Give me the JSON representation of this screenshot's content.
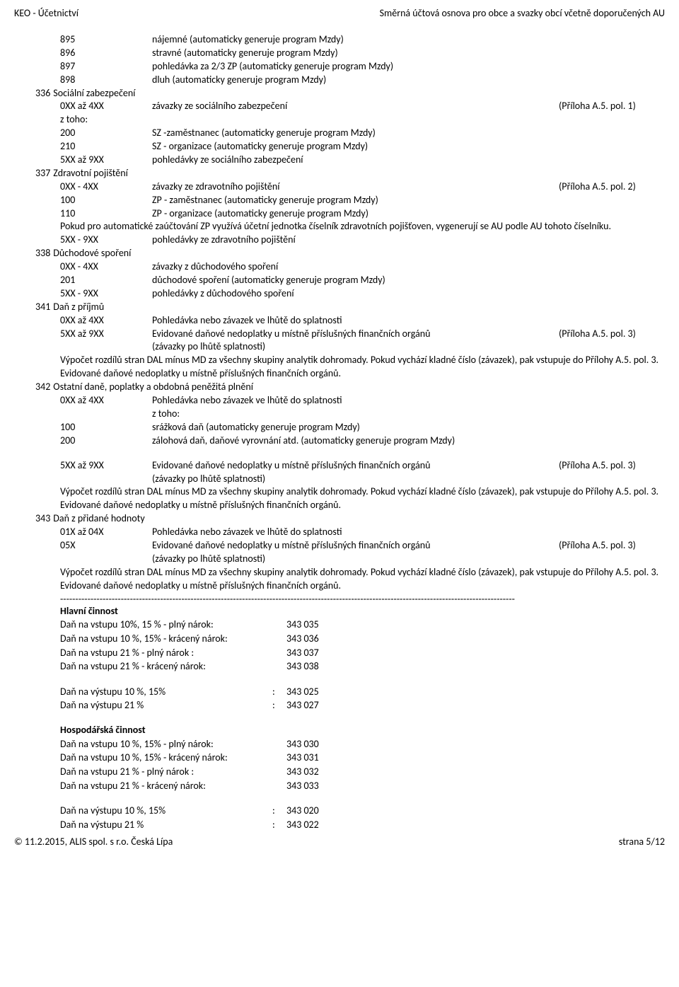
{
  "header": {
    "left": "KEO -  Účetnictví",
    "right": "Směrná účtová osnova pro obce a svazky obcí včetně doporučených AU"
  },
  "lines": [
    {
      "type": "row",
      "indent": 2,
      "code": "895",
      "desc": "nájemné (automaticky generuje program Mzdy)"
    },
    {
      "type": "row",
      "indent": 2,
      "code": "896",
      "desc": "stravné (automaticky generuje program Mzdy)"
    },
    {
      "type": "row",
      "indent": 2,
      "code": "897",
      "desc": "pohledávka za 2/3 ZP (automaticky generuje program Mzdy)"
    },
    {
      "type": "row",
      "indent": 2,
      "code": "898",
      "desc": "dluh (automaticky generuje program Mzdy)"
    },
    {
      "type": "section",
      "code": "336",
      "desc": "Sociální zabezpečení"
    },
    {
      "type": "row",
      "indent": 2,
      "code": "0XX až 4XX",
      "desc": "závazky ze sociálního zabezpečení",
      "ref": "(Příloha A.5. pol. 1)"
    },
    {
      "type": "row",
      "indent": 2,
      "code": "z toho:",
      "desc": ""
    },
    {
      "type": "row",
      "indent": 2,
      "code": "200",
      "desc": "SZ -zaměstnanec  (automaticky generuje program Mzdy)"
    },
    {
      "type": "row",
      "indent": 2,
      "code": "210",
      "desc": "SZ - organizace (automaticky generuje program Mzdy)"
    },
    {
      "type": "row",
      "indent": 2,
      "code": "5XX až 9XX",
      "desc": "pohledávky ze sociálního zabezpečení"
    },
    {
      "type": "section",
      "code": "337",
      "desc": "Zdravotní pojištění"
    },
    {
      "type": "row",
      "indent": 2,
      "code": "0XX - 4XX",
      "desc": "závazky ze zdravotního pojištění",
      "ref": "(Příloha A.5. pol. 2)"
    },
    {
      "type": "row",
      "indent": 2,
      "code": "100",
      "desc": "ZP - zaměstnanec  (automaticky generuje program Mzdy)"
    },
    {
      "type": "row",
      "indent": 2,
      "code": "110",
      "desc": "ZP - organizace (automaticky generuje program Mzdy)"
    },
    {
      "type": "note",
      "text": "Pokud pro automatické zaúčtování ZP využívá účetní jednotka číselník zdravotních pojišťoven, vygenerují se AU podle AU tohoto číselníku."
    },
    {
      "type": "row",
      "indent": 2,
      "code": "5XX - 9XX",
      "desc": "pohledávky ze zdravotního pojištění"
    },
    {
      "type": "section",
      "code": "338",
      "desc": "Důchodové spoření"
    },
    {
      "type": "row",
      "indent": 2,
      "code": "0XX - 4XX",
      "desc": "závazky z důchodového spoření"
    },
    {
      "type": "row",
      "indent": 2,
      "code": "201",
      "desc": "důchodové spoření (automaticky generuje program Mzdy)"
    },
    {
      "type": "row",
      "indent": 2,
      "code": "5XX - 9XX",
      "desc": "pohledávky z důchodového spoření"
    },
    {
      "type": "section",
      "code": "341",
      "desc": "Daň z příjmů"
    },
    {
      "type": "row",
      "indent": 2,
      "code": "0XX až 4XX",
      "desc": "Pohledávka nebo závazek ve lhůtě do splatnosti"
    },
    {
      "type": "row",
      "indent": 2,
      "code": "5XX až 9XX",
      "desc": "Evidované daňové nedoplatky u místně příslušných finančních orgánů",
      "ref": "(Příloha A.5. pol. 3)"
    },
    {
      "type": "row",
      "indent": 2,
      "code": "",
      "desc": "(závazky po lhůtě splatnosti)"
    },
    {
      "type": "note",
      "text": "Výpočet rozdílů stran DAL mínus MD za všechny skupiny analytik dohromady. Pokud vychází kladné číslo (závazek), pak vstupuje do Přílohy A.5. pol. 3. Evidované daňové nedoplatky u místně příslušných finančních orgánů."
    },
    {
      "type": "section",
      "code": "342",
      "desc": "Ostatní daně, poplatky a obdobná peněžitá plnění"
    },
    {
      "type": "row",
      "indent": 2,
      "code": "0XX až 4XX",
      "desc": "Pohledávka nebo závazek ve lhůtě do splatnosti"
    },
    {
      "type": "row",
      "indent": 2,
      "code": "",
      "desc": "z toho:"
    },
    {
      "type": "row",
      "indent": 2,
      "code": "100",
      "desc": "srážková daň (automaticky generuje program Mzdy)"
    },
    {
      "type": "row",
      "indent": 2,
      "code": "200",
      "desc": "zálohová daň, daňové vyrovnání atd. (automaticky generuje program Mzdy)"
    },
    {
      "type": "gap"
    },
    {
      "type": "row",
      "indent": 2,
      "code": "5XX až 9XX",
      "desc": "Evidované daňové nedoplatky u místně příslušných finančních orgánů",
      "ref": "(Příloha A.5. pol. 3)"
    },
    {
      "type": "row",
      "indent": 2,
      "code": "",
      "desc": "(závazky po lhůtě splatnosti)"
    },
    {
      "type": "note",
      "text": "Výpočet rozdílů stran DAL mínus MD za všechny skupiny analytik dohromady. Pokud vychází kladné číslo (závazek), pak vstupuje do Přílohy A.5. pol. 3. Evidované daňové nedoplatky u místně příslušných finančních orgánů."
    },
    {
      "type": "section",
      "code": "343",
      "desc": "Daň z přidané hodnoty"
    },
    {
      "type": "row",
      "indent": 2,
      "code": "01X až 04X",
      "desc": "Pohledávka nebo závazek ve lhůtě do splatnosti"
    },
    {
      "type": "row",
      "indent": 2,
      "code": "05X",
      "desc": "Evidované daňové nedoplatky u místně příslušných finančních orgánů",
      "ref": "(Příloha A.5. pol. 3)"
    },
    {
      "type": "row",
      "indent": 2,
      "code": "",
      "desc": "(závazky po lhůtě splatnosti)"
    },
    {
      "type": "note",
      "text": "Výpočet rozdílů stran DAL mínus MD za všechny skupiny analytik dohromady. Pokud vychází kladné číslo (závazek), pak vstupuje do Přílohy A.5. pol. 3. Evidované daňové nedoplatky u místně příslušných finančních orgánů."
    },
    {
      "type": "dashes"
    },
    {
      "type": "note",
      "bold": true,
      "text": "Hlavní činnost"
    },
    {
      "type": "tab",
      "label": "Daň na vstupu 10%, 15 %  - plný nárok:",
      "sep": "",
      "val": "343 035"
    },
    {
      "type": "tab",
      "label": "Daň na vstupu 10 %, 15%  - krácený nárok:",
      "sep": "",
      "val": "343 036"
    },
    {
      "type": "tab",
      "label": "Daň na vstupu 21 % - plný nárok     :",
      "sep": "",
      "val": "343 037"
    },
    {
      "type": "tab",
      "label": "Daň na vstupu 21 % - krácený nárok:",
      "sep": "",
      "val": "343 038"
    },
    {
      "type": "gap"
    },
    {
      "type": "tab",
      "label": "Daň na výstupu 10 %, 15%",
      "sep": ":",
      "val": "343 025"
    },
    {
      "type": "tab",
      "label": "Daň na výstupu 21 %",
      "sep": ":",
      "val": "343 027"
    },
    {
      "type": "gap"
    },
    {
      "type": "note",
      "bold": true,
      "text": "Hospodářská činnost"
    },
    {
      "type": "tab",
      "label": "Daň na vstupu 10 %, 15%  - plný nárok:",
      "sep": "",
      "val": "343 030"
    },
    {
      "type": "tab",
      "label": "Daň na vstupu 10 %, 15%  - krácený nárok:",
      "sep": "",
      "val": "343 031"
    },
    {
      "type": "tab",
      "label": "Daň na vstupu 21 % - plný nárok     :",
      "sep": "",
      "val": "343 032"
    },
    {
      "type": "tab",
      "label": "Daň na vstupu 21 % - krácený nárok:",
      "sep": "",
      "val": "343 033"
    },
    {
      "type": "gap"
    },
    {
      "type": "tab",
      "label": "Daň na výstupu 10 %, 15%",
      "sep": ":",
      "val": "343 020"
    },
    {
      "type": "tab",
      "label": "Daň na výstupu 21 %",
      "sep": ":",
      "val": "343 022"
    }
  ],
  "dashes": "------------------------------------------------------------------------------------------------------------------------------------------------------",
  "footer": {
    "left": "© 11.2.2015, ALIS spol. s r.o. Česká Lípa",
    "right": "strana 5/12"
  }
}
